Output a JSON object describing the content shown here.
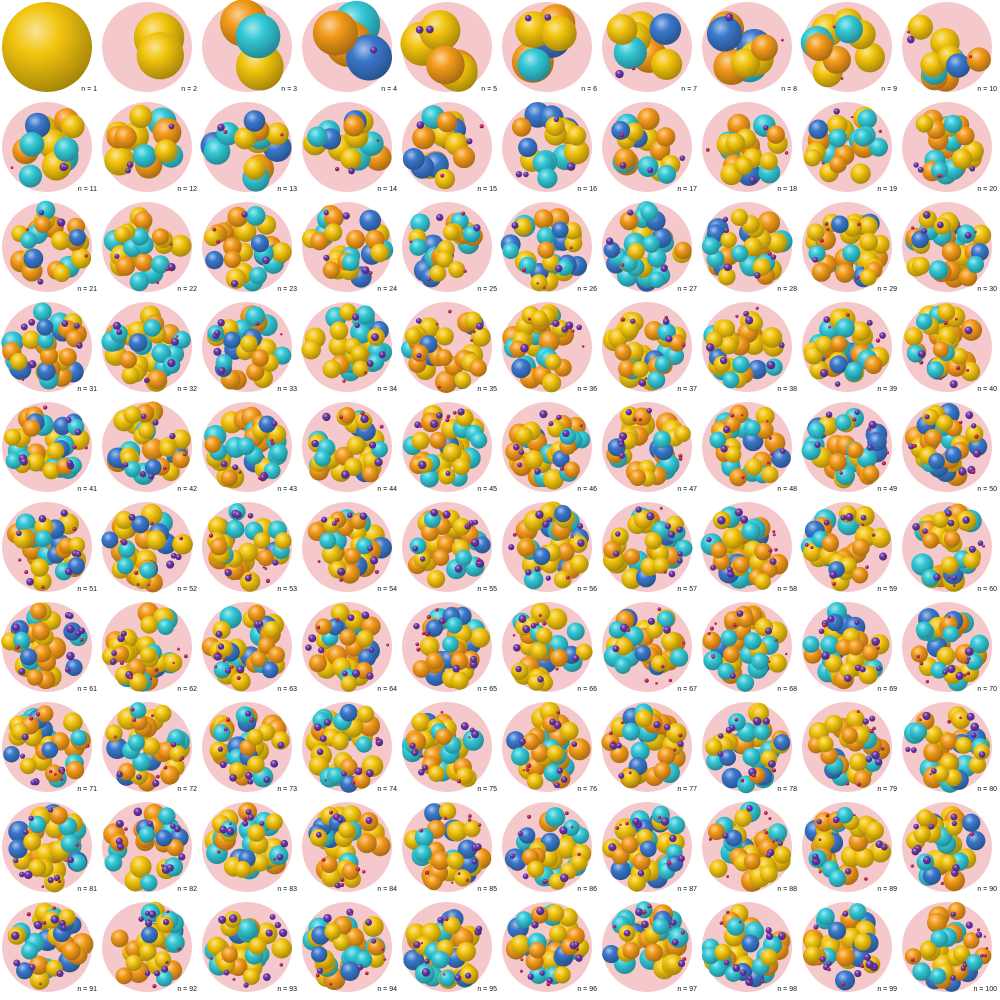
{
  "panels": [
    {
      "label": "n = 1"
    },
    {
      "label": "n = 2"
    },
    {
      "label": "n = 3"
    },
    {
      "label": "n = 4"
    },
    {
      "label": "n = 5"
    },
    {
      "label": "n = 6"
    },
    {
      "label": "n = 7"
    },
    {
      "label": "n = 8"
    },
    {
      "label": "n = 9"
    },
    {
      "label": "n = 10"
    },
    {
      "label": "n = 11"
    },
    {
      "label": "n = 12"
    },
    {
      "label": "n = 13"
    },
    {
      "label": "n = 14"
    },
    {
      "label": "n = 15"
    },
    {
      "label": "n = 16"
    },
    {
      "label": "n = 17"
    },
    {
      "label": "n = 18"
    },
    {
      "label": "n = 19"
    },
    {
      "label": "n = 20"
    },
    {
      "label": "n = 21"
    },
    {
      "label": "n = 22"
    },
    {
      "label": "n = 23"
    },
    {
      "label": "n = 24"
    },
    {
      "label": "n = 25"
    },
    {
      "label": "n = 26"
    },
    {
      "label": "n = 27"
    },
    {
      "label": "n = 28"
    },
    {
      "label": "n = 29"
    },
    {
      "label": "n = 30"
    },
    {
      "label": "n = 31"
    },
    {
      "label": "n = 32"
    },
    {
      "label": "n = 33"
    },
    {
      "label": "n = 34"
    },
    {
      "label": "n = 35"
    },
    {
      "label": "n = 36"
    },
    {
      "label": "n = 37"
    },
    {
      "label": "n = 38"
    },
    {
      "label": "n = 39"
    },
    {
      "label": "n = 40"
    },
    {
      "label": "n = 41"
    },
    {
      "label": "n = 42"
    },
    {
      "label": "n = 43"
    },
    {
      "label": "n = 44"
    },
    {
      "label": "n = 45"
    },
    {
      "label": "n = 46"
    },
    {
      "label": "n = 47"
    },
    {
      "label": "n = 48"
    },
    {
      "label": "n = 49"
    },
    {
      "label": "n = 50"
    },
    {
      "label": "n = 51"
    },
    {
      "label": "n = 52"
    },
    {
      "label": "n = 53"
    },
    {
      "label": "n = 54"
    },
    {
      "label": "n = 55"
    },
    {
      "label": "n = 56"
    },
    {
      "label": "n = 57"
    },
    {
      "label": "n = 58"
    },
    {
      "label": "n = 59"
    },
    {
      "label": "n = 60"
    },
    {
      "label": "n = 61"
    },
    {
      "label": "n = 62"
    },
    {
      "label": "n = 63"
    },
    {
      "label": "n = 64"
    },
    {
      "label": "n = 65"
    },
    {
      "label": "n = 66"
    },
    {
      "label": "n = 67"
    },
    {
      "label": "n = 68"
    },
    {
      "label": "n = 69"
    },
    {
      "label": "n = 70"
    },
    {
      "label": "n = 71"
    },
    {
      "label": "n = 72"
    },
    {
      "label": "n = 73"
    },
    {
      "label": "n = 74"
    },
    {
      "label": "n = 75"
    },
    {
      "label": "n = 76"
    },
    {
      "label": "n = 77"
    },
    {
      "label": "n = 78"
    },
    {
      "label": "n = 79"
    },
    {
      "label": "n = 80"
    },
    {
      "label": "n = 81"
    },
    {
      "label": "n = 82"
    },
    {
      "label": "n = 83"
    },
    {
      "label": "n = 84"
    },
    {
      "label": "n = 85"
    },
    {
      "label": "n = 86"
    },
    {
      "label": "n = 87"
    },
    {
      "label": "n = 88"
    },
    {
      "label": "n = 89"
    },
    {
      "label": "n = 90"
    },
    {
      "label": "n = 91"
    },
    {
      "label": "n = 92"
    },
    {
      "label": "n = 93"
    },
    {
      "label": "n = 94"
    },
    {
      "label": "n = 95"
    },
    {
      "label": "n = 96"
    },
    {
      "label": "n = 97"
    },
    {
      "label": "n = 98"
    },
    {
      "label": "n = 99"
    },
    {
      "label": "n = 100"
    }
  ],
  "colors": {
    "container_fill": "#f5c8cc",
    "sphere_yellow": "#f2c40e",
    "sphere_orange": "#f39a1a",
    "sphere_cyan": "#33c8d6",
    "sphere_blue": "#3a78cc",
    "sphere_purple": "#6a36a8",
    "sphere_magenta": "#b8205c",
    "label_text": "#111111"
  }
}
